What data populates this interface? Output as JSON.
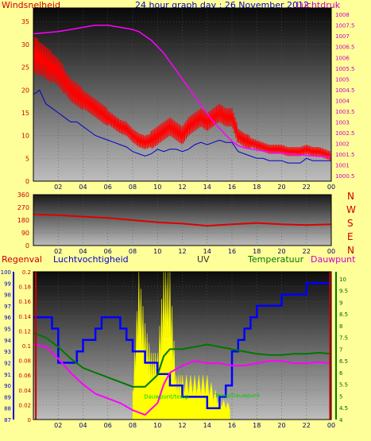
{
  "header": {
    "left_label": "Windsnelheid",
    "title": "24 hour graph day : 26 November 2012",
    "right_label": "Luchtdruk"
  },
  "colors": {
    "background": "#ffff99",
    "wind_gust": "#ff0000",
    "wind_avg": "#0000cc",
    "pressure": "#ff00ff",
    "direction": "#dd0000",
    "humidity": "#0000ff",
    "temperature": "#007700",
    "dewpoint": "#ff00ff",
    "uv": "#ffff00",
    "rain": "#cc0000"
  },
  "direction_letters": [
    "N",
    "W",
    "S",
    "E",
    "N"
  ],
  "bottom_header": {
    "rain": "Regenval",
    "humidity": "Luchtvochtigheid",
    "uv": "UV",
    "temperature": "Temperatuur",
    "dewpoint": "Dauwpunt"
  },
  "inline_labels": {
    "dewpoint": "Dauwpunt/temp",
    "temperature": "Temp/Dauwpunt"
  },
  "chart_data": [
    {
      "id": "wind_pressure",
      "type": "line",
      "x_ticks": [
        "02",
        "04",
        "06",
        "08",
        "10",
        "12",
        "14",
        "16",
        "18",
        "20",
        "22",
        "00"
      ],
      "xlim": [
        0,
        24
      ],
      "y_left": {
        "label": "Windsnelheid",
        "ticks": [
          0,
          5,
          10,
          15,
          20,
          25,
          30,
          35
        ],
        "ylim": [
          0,
          38
        ]
      },
      "y_right": {
        "label": "Luchtdruk",
        "ticks": [
          1000.5,
          1001,
          1001.5,
          1002,
          1002.5,
          1003,
          1003.5,
          1004,
          1004.5,
          1005,
          1005.5,
          1006,
          1006.5,
          1007,
          1007.5,
          1008
        ],
        "ylim": [
          1000.25,
          1008.3
        ]
      },
      "series": [
        {
          "key": "gust",
          "axis": "left",
          "x": [
            0,
            0.5,
            1,
            1.5,
            2,
            2.5,
            3,
            3.5,
            4,
            4.5,
            5,
            5.5,
            6,
            6.5,
            7,
            7.5,
            8,
            8.5,
            9,
            9.5,
            10,
            10.5,
            11,
            11.5,
            12,
            12.5,
            13,
            13.5,
            14,
            14.5,
            15,
            15.5,
            16,
            16.5,
            17,
            17.5,
            18,
            18.5,
            19,
            19.5,
            20,
            20.5,
            21,
            21.5,
            22,
            22.5,
            23,
            23.5,
            24
          ],
          "y": [
            28,
            27,
            26,
            25,
            24,
            22,
            20,
            19,
            18,
            17,
            16,
            15,
            14,
            13,
            12,
            11.5,
            10,
            9,
            8.5,
            9,
            10,
            11,
            12,
            11,
            10,
            12,
            13,
            14,
            13,
            14,
            15,
            14,
            14,
            10,
            9,
            8.5,
            8,
            7.5,
            7,
            7,
            7,
            6.5,
            6.5,
            6.5,
            7,
            6.5,
            6.5,
            6,
            5.5
          ],
          "spread": [
            8,
            7,
            7,
            6,
            6,
            5,
            5,
            5,
            4,
            4,
            4,
            4,
            3,
            3,
            3,
            3,
            3,
            3,
            3,
            4,
            4,
            4,
            4,
            4,
            4,
            4,
            4,
            4,
            4,
            4,
            4,
            4,
            4,
            3,
            3,
            2,
            2,
            2,
            2,
            2,
            2,
            2,
            2,
            2,
            2,
            2,
            2,
            2,
            2
          ]
        },
        {
          "key": "avg",
          "axis": "left",
          "x": [
            0,
            0.5,
            1,
            1.5,
            2,
            2.5,
            3,
            3.5,
            4,
            4.5,
            5,
            5.5,
            6,
            6.5,
            7,
            7.5,
            8,
            8.5,
            9,
            9.5,
            10,
            10.5,
            11,
            11.5,
            12,
            12.5,
            13,
            13.5,
            14,
            14.5,
            15,
            15.5,
            16,
            16.5,
            17,
            17.5,
            18,
            18.5,
            19,
            19.5,
            20,
            20.5,
            21,
            21.5,
            22,
            22.5,
            23,
            23.5,
            24
          ],
          "y": [
            19,
            20,
            17,
            16,
            15,
            14,
            13,
            13,
            12,
            11,
            10,
            9.5,
            9,
            8.5,
            8,
            7.5,
            6.5,
            6,
            5.5,
            6,
            7,
            6.5,
            7,
            7,
            6.5,
            7,
            8,
            8.5,
            8,
            8.5,
            9,
            8.5,
            8.5,
            6.5,
            6,
            5.5,
            5,
            5,
            4.5,
            4.5,
            4.5,
            4,
            4,
            4,
            5,
            4.5,
            4.5,
            4.5,
            4.5
          ]
        },
        {
          "key": "pressure",
          "axis": "right",
          "x": [
            0,
            1,
            2,
            3,
            4,
            5,
            6,
            7,
            8,
            8.5,
            9,
            9.5,
            10,
            10.5,
            11,
            11.5,
            12,
            12.5,
            13,
            13.5,
            14,
            14.5,
            15,
            15.5,
            16,
            16.5,
            17,
            17.5,
            18,
            19,
            20,
            21,
            22,
            23,
            24
          ],
          "y": [
            1007.1,
            1007.15,
            1007.2,
            1007.3,
            1007.4,
            1007.5,
            1007.5,
            1007.4,
            1007.3,
            1007.2,
            1007.0,
            1006.8,
            1006.5,
            1006.2,
            1005.8,
            1005.4,
            1005.0,
            1004.6,
            1004.2,
            1003.8,
            1003.4,
            1003.0,
            1002.7,
            1002.4,
            1002.1,
            1001.9,
            1001.8,
            1001.75,
            1001.7,
            1001.6,
            1001.55,
            1001.5,
            1001.45,
            1001.4,
            1001.4
          ]
        }
      ]
    },
    {
      "id": "wind_direction",
      "type": "line",
      "x_ticks": [
        "02",
        "04",
        "06",
        "08",
        "10",
        "12",
        "14",
        "16",
        "18",
        "20",
        "22",
        "00"
      ],
      "xlim": [
        0,
        24
      ],
      "y_left": {
        "ticks": [
          0,
          90,
          180,
          270,
          360
        ],
        "ylim": [
          0,
          360
        ]
      },
      "series": [
        {
          "key": "direction",
          "x": [
            0,
            2,
            4,
            6,
            8,
            10,
            12,
            14,
            16,
            18,
            20,
            22,
            24
          ],
          "y": [
            220,
            215,
            205,
            195,
            180,
            165,
            155,
            140,
            150,
            160,
            150,
            145,
            150
          ]
        }
      ]
    },
    {
      "id": "rain_humidity_uv_temp",
      "type": "line",
      "x_ticks": [
        "02",
        "04",
        "06",
        "08",
        "10",
        "12",
        "14",
        "16",
        "18",
        "20",
        "22",
        "00"
      ],
      "xlim": [
        0,
        24
      ],
      "axes": {
        "humidity": {
          "ticks": [
            87,
            88,
            89,
            90,
            91,
            92,
            93,
            94,
            95,
            96,
            97,
            98,
            99,
            100
          ],
          "ylim": [
            87,
            100
          ]
        },
        "rain": {
          "ticks": [
            0,
            0.02,
            0.04,
            0.06,
            0.08,
            0.1,
            0.12,
            0.14,
            0.16,
            0.18,
            0.2
          ],
          "ylim": [
            0,
            0.2
          ]
        },
        "temperature": {
          "ticks": [
            4,
            4.5,
            5,
            5.5,
            6,
            6.5,
            7,
            7.5,
            8,
            8.5,
            9,
            9.5,
            10
          ],
          "ylim": [
            4,
            10.3
          ]
        }
      },
      "series": [
        {
          "key": "humidity",
          "axis": "humidity",
          "x": [
            0,
            1,
            1.5,
            2,
            3,
            3.5,
            4,
            4.5,
            5,
            5.5,
            6,
            6.5,
            7,
            7.5,
            8,
            8.5,
            9,
            10,
            10.5,
            11,
            11.5,
            12,
            12.5,
            13,
            14,
            14.5,
            15,
            15.5,
            16,
            16.5,
            17,
            17.5,
            18,
            19,
            20,
            21,
            22,
            23,
            24
          ],
          "y": [
            96,
            96,
            95,
            92,
            92,
            93,
            94,
            94,
            95,
            96,
            96,
            96,
            95,
            94,
            93,
            93,
            92,
            91,
            91,
            90,
            90,
            89,
            89,
            89,
            88,
            88,
            89,
            90,
            93,
            94,
            95,
            96,
            97,
            97,
            98,
            98,
            99,
            99,
            99
          ]
        },
        {
          "key": "temperature",
          "axis": "temperature",
          "x": [
            0,
            1,
            2,
            3,
            4,
            5,
            6,
            7,
            8,
            9,
            10,
            10.5,
            11,
            12,
            13,
            14,
            15,
            16,
            17,
            18,
            19,
            20,
            21,
            22,
            23,
            24
          ],
          "y": [
            7.7,
            7.5,
            7.1,
            6.6,
            6.2,
            6.0,
            5.8,
            5.6,
            5.4,
            5.4,
            5.9,
            6.7,
            7.0,
            7.0,
            7.1,
            7.2,
            7.1,
            7.0,
            6.9,
            6.8,
            6.75,
            6.75,
            6.8,
            6.8,
            6.85,
            6.8
          ]
        },
        {
          "key": "dewpoint",
          "axis": "temperature",
          "x": [
            0,
            1,
            2,
            3,
            4,
            5,
            6,
            7,
            8,
            9,
            10,
            10.5,
            11,
            12,
            13,
            14,
            15,
            16,
            17,
            18,
            19,
            20,
            21,
            22,
            23,
            24
          ],
          "y": [
            7.2,
            7.1,
            6.6,
            6.0,
            5.5,
            5.1,
            4.9,
            4.7,
            4.4,
            4.2,
            4.7,
            5.5,
            6.0,
            6.3,
            6.5,
            6.4,
            6.4,
            6.3,
            6.3,
            6.4,
            6.5,
            6.5,
            6.4,
            6.4,
            6.45,
            6.4
          ]
        },
        {
          "key": "uv",
          "axis": "rain",
          "x": [
            8,
            8.5,
            9,
            9.5,
            10,
            10.5,
            11,
            11.5,
            12,
            13,
            14,
            15,
            16
          ],
          "y": [
            0.04,
            0.2,
            0.13,
            0.09,
            0.09,
            0.2,
            0.2,
            0.06,
            0.06,
            0.06,
            0.06,
            0.03,
            0.02
          ],
          "note": "uv rendered as filled yellow area"
        },
        {
          "key": "rain_bar",
          "axis": "rain",
          "x": [
            0.2,
            23.9
          ],
          "y": [
            0.2,
            0.2
          ],
          "note": "vertical red rain markers at start/end of day"
        }
      ]
    }
  ]
}
